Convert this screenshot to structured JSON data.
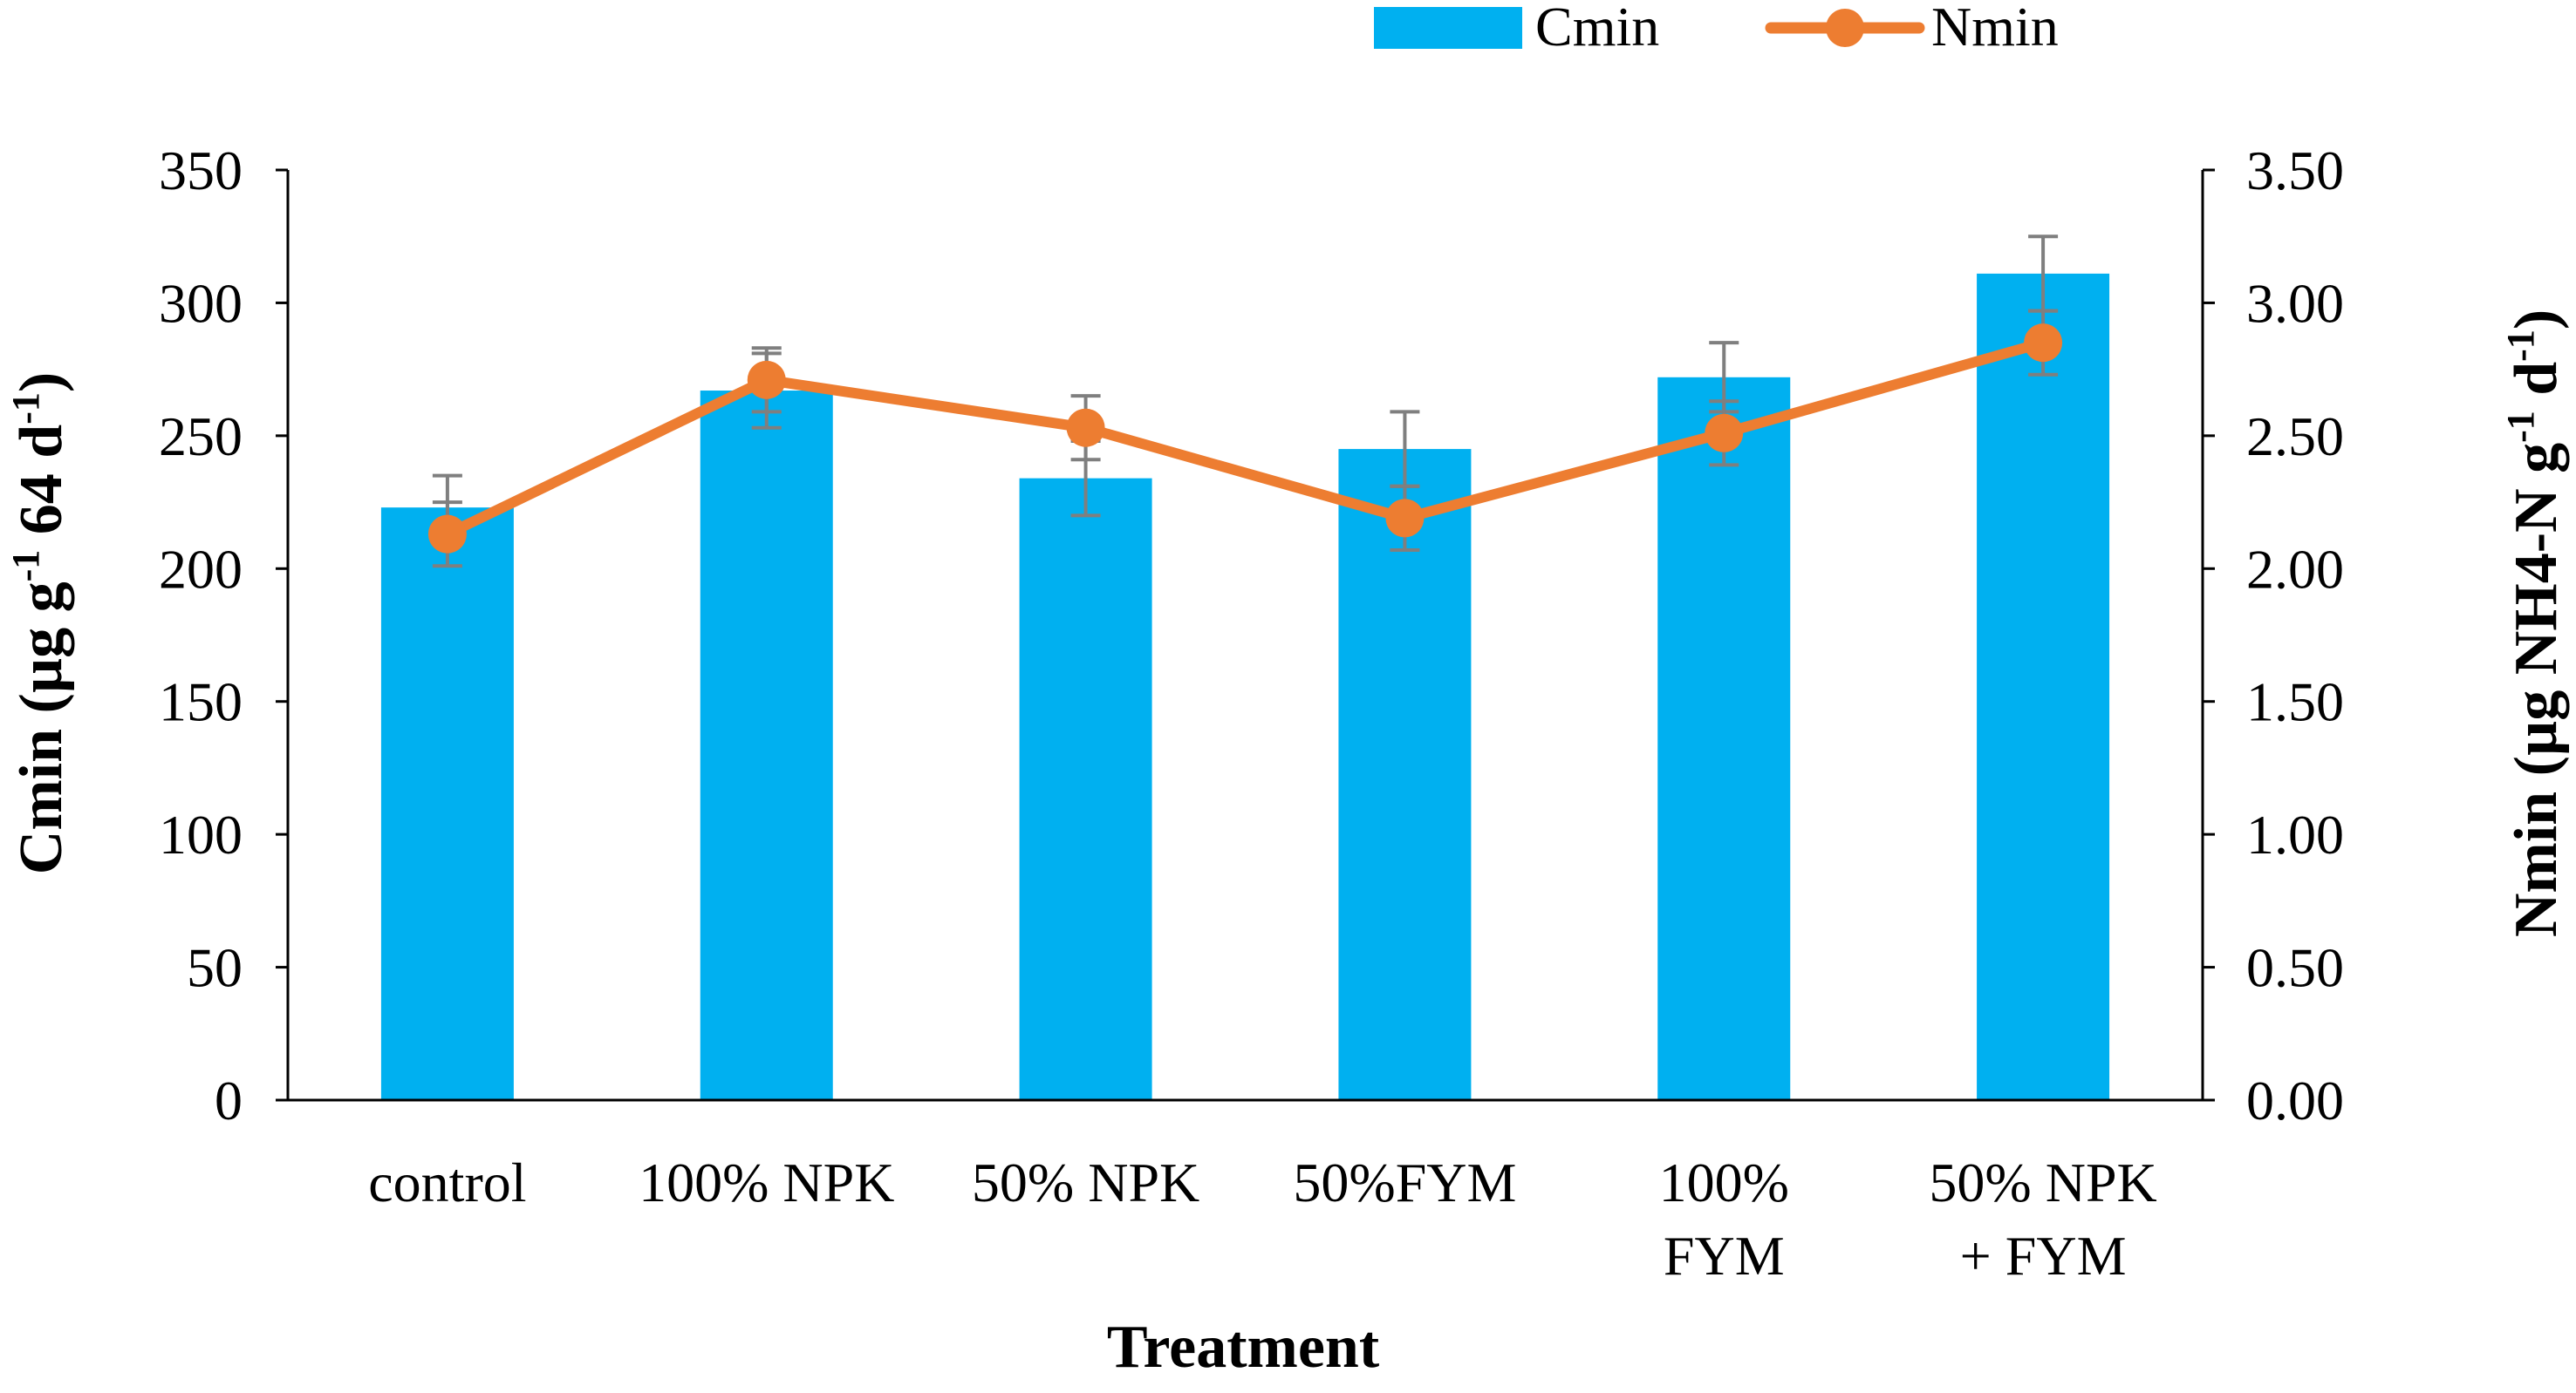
{
  "chart_data": {
    "type": "bar",
    "title": "",
    "categories": [
      [
        "control"
      ],
      [
        "100% NPK"
      ],
      [
        "50% NPK"
      ],
      [
        "50%FYM"
      ],
      [
        "100%",
        "FYM"
      ],
      [
        "50% NPK",
        "+ FYM"
      ]
    ],
    "xlabel": "Treatment",
    "ylabel": {
      "left": {
        "main": "Cmin (µg g",
        "sup1": "-1",
        "mid": " 64 d",
        "sup2": "-1",
        "end": ")"
      },
      "right": {
        "main": "Nmin (µg NH4-N g",
        "sup1": "-1",
        "mid": " d",
        "sup2": "-1",
        "end": ")"
      }
    },
    "y_left": {
      "min": 0,
      "max": 350,
      "step": 50,
      "tick_labels": [
        "0",
        "50",
        "100",
        "150",
        "200",
        "250",
        "300",
        "350"
      ]
    },
    "y_right": {
      "min": 0,
      "max": 3.5,
      "step": 0.5,
      "tick_labels": [
        "0.00",
        "0.50",
        "1.00",
        "1.50",
        "2.00",
        "2.50",
        "3.00",
        "3.50"
      ]
    },
    "series": [
      {
        "name": "Cmin",
        "type": "bar",
        "axis": "left",
        "color": "#00B0F0",
        "values": [
          223,
          267,
          234,
          245,
          272,
          311
        ],
        "errors": [
          12,
          14,
          14,
          14,
          13,
          14
        ]
      },
      {
        "name": "Nmin",
        "type": "line",
        "axis": "right",
        "color": "#ED7D31",
        "values": [
          2.13,
          2.71,
          2.53,
          2.19,
          2.51,
          2.85
        ],
        "errors": [
          0.12,
          0.12,
          0.12,
          0.12,
          0.12,
          0.12
        ]
      }
    ],
    "error_bar_color": "#7F7F7F",
    "axis_color": "#000000",
    "legend": {
      "position": "top",
      "items": [
        "Cmin",
        "Nmin"
      ]
    },
    "grid": false
  }
}
